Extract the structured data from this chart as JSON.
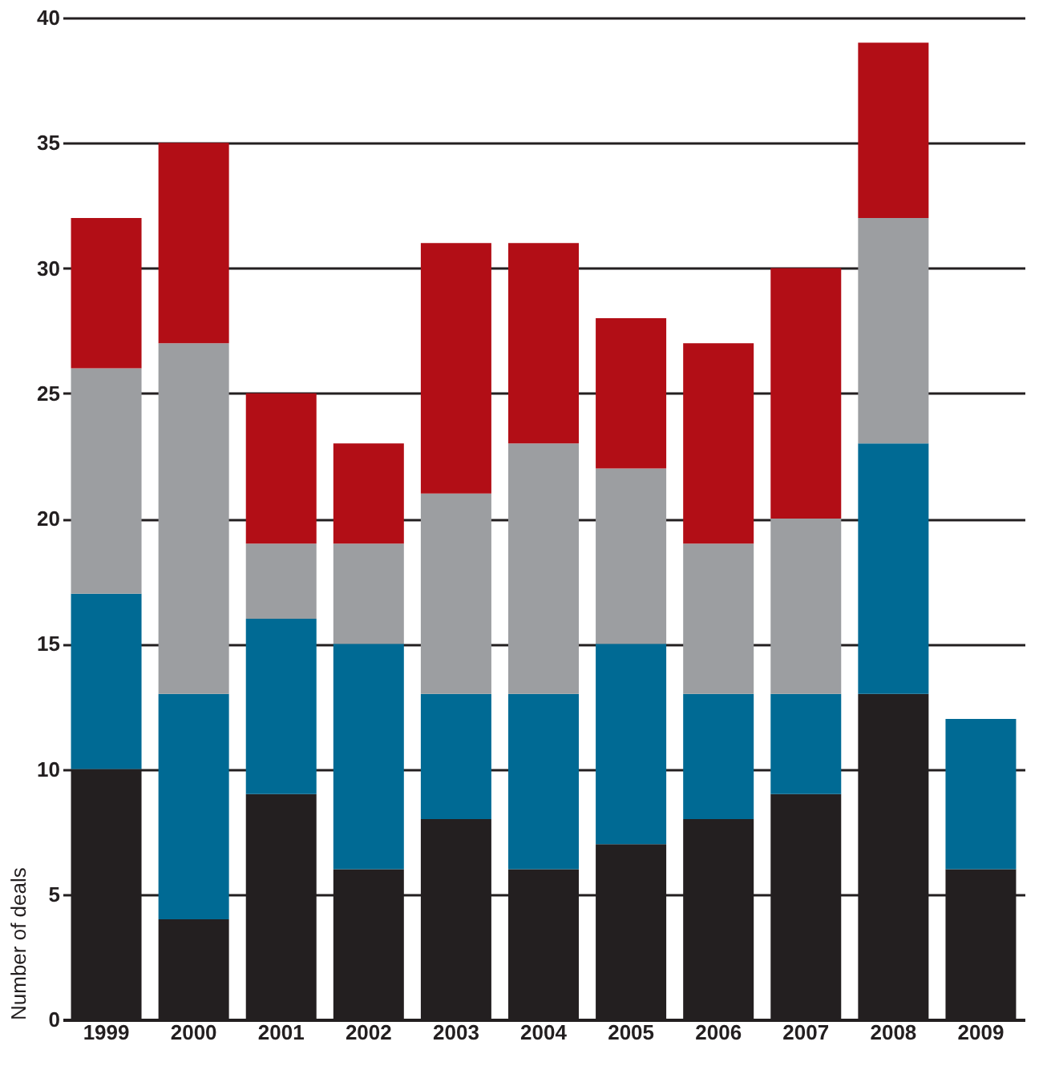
{
  "chart_data": {
    "type": "bar",
    "stacked": true,
    "ylabel": "Number of deals",
    "categories": [
      "1999",
      "2000",
      "2001",
      "2002",
      "2003",
      "2004",
      "2005",
      "2006",
      "2007",
      "2008",
      "2009"
    ],
    "series": [
      {
        "color": "#231f20",
        "values": [
          10,
          4,
          9,
          6,
          8,
          6,
          7,
          8,
          9,
          13,
          6
        ]
      },
      {
        "color": "#006a94",
        "values": [
          7,
          9,
          7,
          9,
          5,
          7,
          8,
          5,
          4,
          10,
          6
        ]
      },
      {
        "color": "#9c9ea1",
        "values": [
          9,
          14,
          3,
          4,
          8,
          10,
          7,
          6,
          7,
          9,
          null
        ]
      },
      {
        "color": "#b20e16",
        "values": [
          6,
          8,
          6,
          4,
          10,
          8,
          6,
          8,
          10,
          7,
          null
        ]
      }
    ],
    "ylim": [
      0,
      40
    ],
    "yticks": [
      0,
      5,
      10,
      15,
      20,
      25,
      30,
      35,
      40
    ],
    "grid": "y",
    "legend": false
  }
}
